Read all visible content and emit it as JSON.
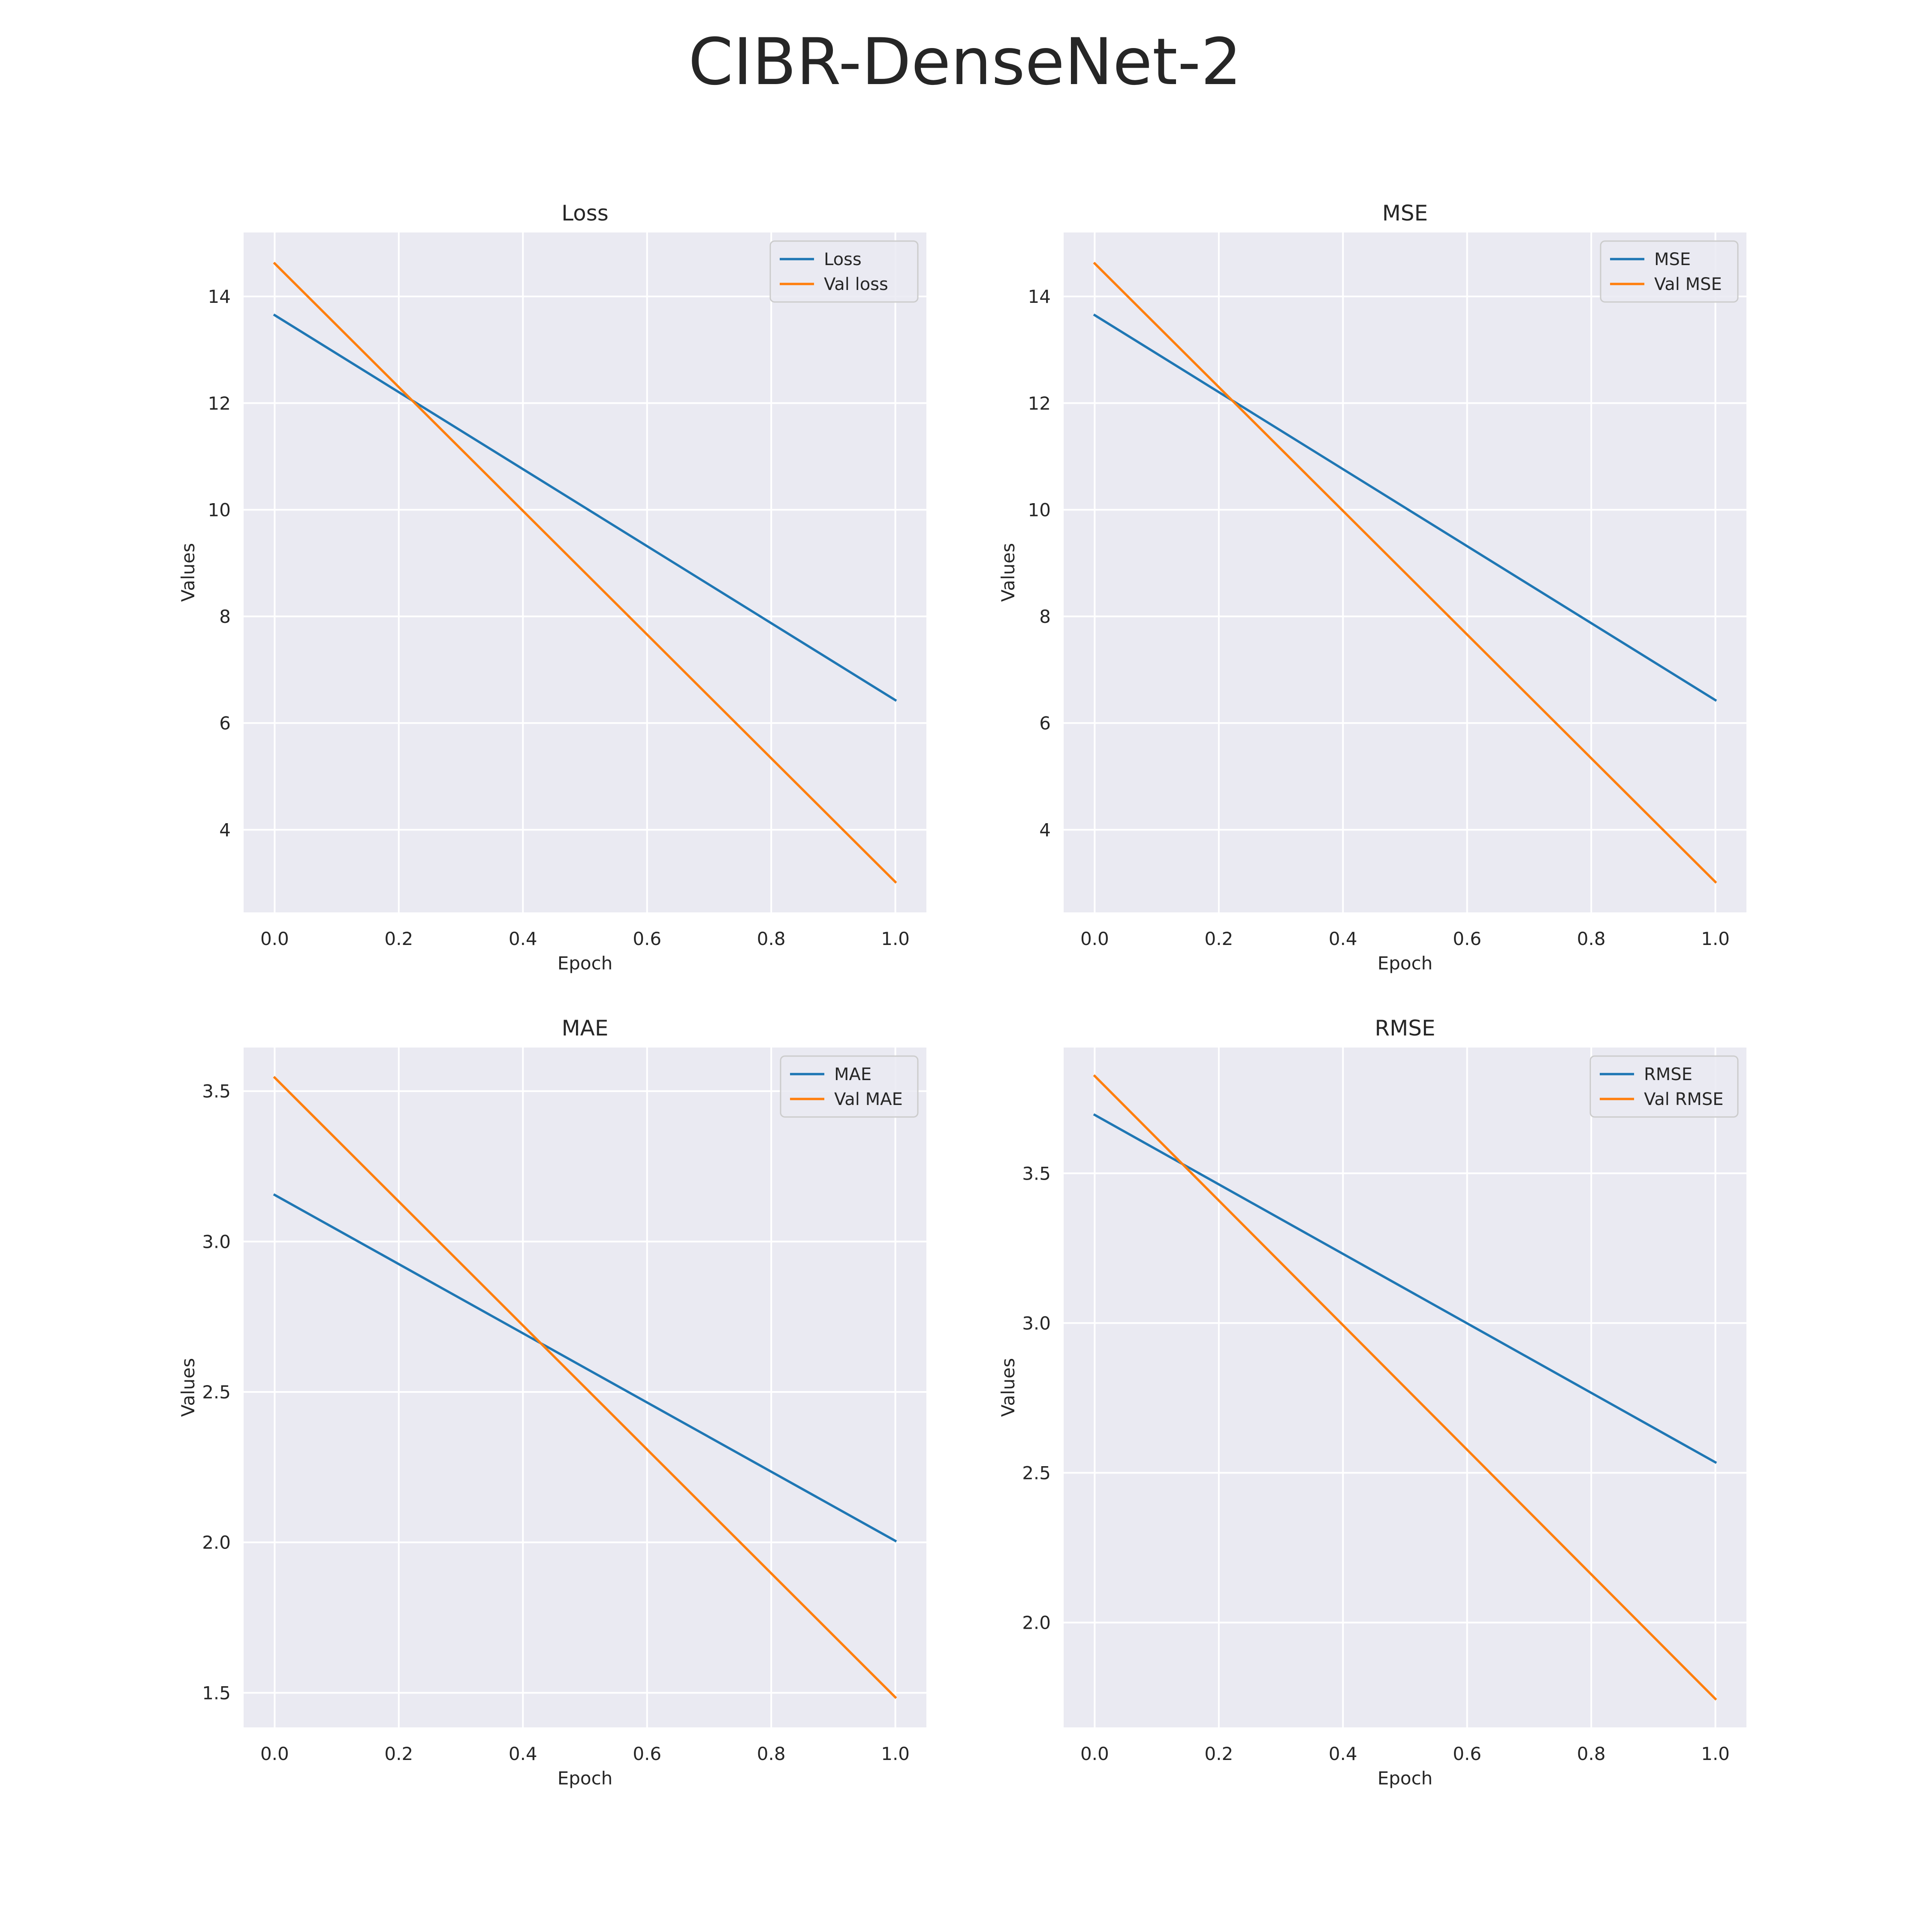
{
  "figure": {
    "title": "CIBR-DenseNet-2"
  },
  "colors": {
    "train": "#1f77b4",
    "val": "#ff7f0e",
    "axes_bg": "#eaeaf2",
    "grid": "#ffffff"
  },
  "chart_data": [
    {
      "type": "line",
      "title": "Loss",
      "xlabel": "Epoch",
      "ylabel": "Values",
      "x": [
        0,
        1
      ],
      "xlim": [
        -0.05,
        1.05
      ],
      "ylim": [
        2.45,
        15.2
      ],
      "xticks": [
        0.0,
        0.2,
        0.4,
        0.6,
        0.8,
        1.0
      ],
      "xtick_labels": [
        "0.0",
        "0.2",
        "0.4",
        "0.6",
        "0.8",
        "1.0"
      ],
      "yticks": [
        4,
        6,
        8,
        10,
        12,
        14
      ],
      "ytick_labels": [
        "4",
        "6",
        "8",
        "10",
        "12",
        "14"
      ],
      "legend": "upper right",
      "grid": true,
      "series": [
        {
          "name": "Loss",
          "color": "#1f77b4",
          "values": [
            13.65,
            6.43
          ]
        },
        {
          "name": "Val loss",
          "color": "#ff7f0e",
          "values": [
            14.62,
            3.02
          ]
        }
      ]
    },
    {
      "type": "line",
      "title": "MSE",
      "xlabel": "Epoch",
      "ylabel": "Values",
      "x": [
        0,
        1
      ],
      "xlim": [
        -0.05,
        1.05
      ],
      "ylim": [
        2.45,
        15.2
      ],
      "xticks": [
        0.0,
        0.2,
        0.4,
        0.6,
        0.8,
        1.0
      ],
      "xtick_labels": [
        "0.0",
        "0.2",
        "0.4",
        "0.6",
        "0.8",
        "1.0"
      ],
      "yticks": [
        4,
        6,
        8,
        10,
        12,
        14
      ],
      "ytick_labels": [
        "4",
        "6",
        "8",
        "10",
        "12",
        "14"
      ],
      "legend": "upper right",
      "grid": true,
      "series": [
        {
          "name": "MSE",
          "color": "#1f77b4",
          "values": [
            13.65,
            6.43
          ]
        },
        {
          "name": "Val MSE",
          "color": "#ff7f0e",
          "values": [
            14.62,
            3.02
          ]
        }
      ]
    },
    {
      "type": "line",
      "title": "MAE",
      "xlabel": "Epoch",
      "ylabel": "Values",
      "x": [
        0,
        1
      ],
      "xlim": [
        -0.05,
        1.05
      ],
      "ylim": [
        1.385,
        3.645
      ],
      "xticks": [
        0.0,
        0.2,
        0.4,
        0.6,
        0.8,
        1.0
      ],
      "xtick_labels": [
        "0.0",
        "0.2",
        "0.4",
        "0.6",
        "0.8",
        "1.0"
      ],
      "yticks": [
        1.5,
        2.0,
        2.5,
        3.0,
        3.5
      ],
      "ytick_labels": [
        "1.5",
        "2.0",
        "2.5",
        "3.0",
        "3.5"
      ],
      "legend": "upper right",
      "grid": true,
      "series": [
        {
          "name": "MAE",
          "color": "#1f77b4",
          "values": [
            3.155,
            2.005
          ]
        },
        {
          "name": "Val MAE",
          "color": "#ff7f0e",
          "values": [
            3.545,
            1.485
          ]
        }
      ]
    },
    {
      "type": "line",
      "title": "RMSE",
      "xlabel": "Epoch",
      "ylabel": "Values",
      "x": [
        0,
        1
      ],
      "xlim": [
        -0.05,
        1.05
      ],
      "ylim": [
        1.65,
        3.92
      ],
      "xticks": [
        0.0,
        0.2,
        0.4,
        0.6,
        0.8,
        1.0
      ],
      "xtick_labels": [
        "0.0",
        "0.2",
        "0.4",
        "0.6",
        "0.8",
        "1.0"
      ],
      "yticks": [
        2.0,
        2.5,
        3.0,
        3.5
      ],
      "ytick_labels": [
        "2.0",
        "2.5",
        "3.0",
        "3.5"
      ],
      "legend": "upper right",
      "grid": true,
      "series": [
        {
          "name": "RMSE",
          "color": "#1f77b4",
          "values": [
            3.695,
            2.535
          ]
        },
        {
          "name": "Val RMSE",
          "color": "#ff7f0e",
          "values": [
            3.825,
            1.745
          ]
        }
      ]
    }
  ]
}
